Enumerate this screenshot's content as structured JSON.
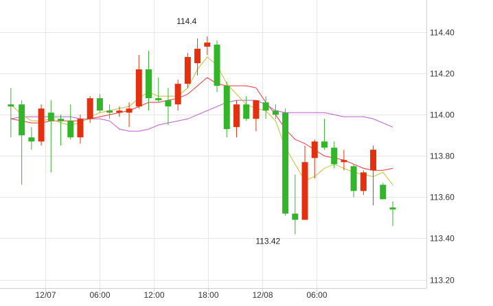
{
  "chart_data": {
    "type": "candlestick",
    "y_axis": {
      "range": [
        113.2,
        114.5
      ],
      "ticks": [
        114.4,
        114.2,
        114.0,
        113.8,
        113.6,
        113.4,
        113.2
      ],
      "tick_labels": [
        "114.40",
        "114.20",
        "114.00",
        "113.80",
        "113.60",
        "113.40",
        "113.20"
      ],
      "position": "right"
    },
    "x_axis": {
      "tick_labels": [
        "12/07",
        "06:00",
        "12:00",
        "18:00",
        "12/08",
        "06:00"
      ],
      "tick_slots": [
        3,
        8,
        13,
        18,
        23,
        28
      ]
    },
    "grid": true,
    "annotations": [
      {
        "text": "114.4",
        "slot": 16,
        "value": 114.42,
        "where": "above"
      },
      {
        "text": "113.42",
        "slot": 23.5,
        "value": 113.42,
        "where": "below"
      }
    ],
    "colors": {
      "up": "#e3300e",
      "down": "#33b52a",
      "ma_short": "#c8c447",
      "ma_mid": "#f04848",
      "ma_long": "#c26ad0",
      "grid": "#e6e6e6",
      "axis": "#cfcfcf"
    },
    "candles": [
      {
        "slot": -0.2,
        "o": 114.05,
        "h": 114.13,
        "l": 113.89,
        "c": 114.04
      },
      {
        "slot": 0.8,
        "o": 114.05,
        "h": 114.07,
        "l": 113.66,
        "c": 113.9
      },
      {
        "slot": 1.7,
        "o": 113.89,
        "h": 113.94,
        "l": 113.83,
        "c": 113.87
      },
      {
        "slot": 2.6,
        "o": 113.87,
        "h": 114.05,
        "l": 113.85,
        "c": 114.03
      },
      {
        "slot": 3.5,
        "o": 114.01,
        "h": 114.07,
        "l": 113.72,
        "c": 113.97
      },
      {
        "slot": 4.4,
        "o": 113.98,
        "h": 114.0,
        "l": 113.85,
        "c": 113.97
      },
      {
        "slot": 5.3,
        "o": 113.97,
        "h": 114.05,
        "l": 113.88,
        "c": 113.89
      },
      {
        "slot": 6.2,
        "o": 113.89,
        "h": 114.0,
        "l": 113.86,
        "c": 113.98
      },
      {
        "slot": 7.1,
        "o": 113.98,
        "h": 114.09,
        "l": 113.96,
        "c": 114.08
      },
      {
        "slot": 8.0,
        "o": 114.08,
        "h": 114.1,
        "l": 114.01,
        "c": 114.02
      },
      {
        "slot": 8.9,
        "o": 114.02,
        "h": 114.05,
        "l": 113.98,
        "c": 114.01
      },
      {
        "slot": 9.8,
        "o": 114.01,
        "h": 114.04,
        "l": 113.99,
        "c": 114.02
      },
      {
        "slot": 10.7,
        "o": 114.01,
        "h": 114.06,
        "l": 113.94,
        "c": 114.03
      },
      {
        "slot": 11.6,
        "o": 114.04,
        "h": 114.29,
        "l": 114.03,
        "c": 114.22
      },
      {
        "slot": 12.5,
        "o": 114.22,
        "h": 114.31,
        "l": 114.02,
        "c": 114.08
      },
      {
        "slot": 13.4,
        "o": 114.08,
        "h": 114.18,
        "l": 114.06,
        "c": 114.07
      },
      {
        "slot": 14.3,
        "o": 114.07,
        "h": 114.13,
        "l": 113.95,
        "c": 114.04
      },
      {
        "slot": 15.2,
        "o": 114.05,
        "h": 114.17,
        "l": 114.02,
        "c": 114.15
      },
      {
        "slot": 16.1,
        "o": 114.15,
        "h": 114.3,
        "l": 114.13,
        "c": 114.28
      },
      {
        "slot": 17.0,
        "o": 114.25,
        "h": 114.37,
        "l": 114.19,
        "c": 114.32
      },
      {
        "slot": 17.9,
        "o": 114.33,
        "h": 114.38,
        "l": 114.29,
        "c": 114.35
      },
      {
        "slot": 18.8,
        "o": 114.34,
        "h": 114.36,
        "l": 114.11,
        "c": 114.14
      },
      {
        "slot": 19.7,
        "o": 114.14,
        "h": 114.16,
        "l": 113.89,
        "c": 113.93
      },
      {
        "slot": 20.6,
        "o": 113.94,
        "h": 114.07,
        "l": 113.89,
        "c": 114.05
      },
      {
        "slot": 21.5,
        "o": 114.05,
        "h": 114.09,
        "l": 113.97,
        "c": 113.98
      },
      {
        "slot": 22.4,
        "o": 113.98,
        "h": 114.07,
        "l": 113.92,
        "c": 114.07
      },
      {
        "slot": 23.3,
        "o": 114.06,
        "h": 114.09,
        "l": 113.98,
        "c": 114.02
      },
      {
        "slot": 24.2,
        "o": 114.02,
        "h": 114.05,
        "l": 113.98,
        "c": 114.0
      },
      {
        "slot": 25.1,
        "o": 114.01,
        "h": 114.03,
        "l": 113.51,
        "c": 113.52
      },
      {
        "slot": 26.0,
        "o": 113.52,
        "h": 113.71,
        "l": 113.42,
        "c": 113.49
      },
      {
        "slot": 26.9,
        "o": 113.49,
        "h": 113.85,
        "l": 113.49,
        "c": 113.77
      },
      {
        "slot": 27.8,
        "o": 113.79,
        "h": 113.88,
        "l": 113.69,
        "c": 113.87
      },
      {
        "slot": 28.7,
        "o": 113.87,
        "h": 113.98,
        "l": 113.83,
        "c": 113.84
      },
      {
        "slot": 29.6,
        "o": 113.84,
        "h": 113.87,
        "l": 113.74,
        "c": 113.76
      },
      {
        "slot": 30.5,
        "o": 113.77,
        "h": 113.83,
        "l": 113.73,
        "c": 113.78
      },
      {
        "slot": 31.4,
        "o": 113.75,
        "h": 113.76,
        "l": 113.6,
        "c": 113.63
      },
      {
        "slot": 32.3,
        "o": 113.63,
        "h": 113.73,
        "l": 113.61,
        "c": 113.72
      },
      {
        "slot": 33.2,
        "o": 113.73,
        "h": 113.85,
        "l": 113.56,
        "c": 113.83
      },
      {
        "slot": 34.1,
        "o": 113.66,
        "h": 113.67,
        "l": 113.59,
        "c": 113.59
      },
      {
        "slot": 35.0,
        "o": 113.55,
        "h": 113.58,
        "l": 113.46,
        "c": 113.54
      }
    ],
    "ma_short": [
      114.05,
      114.0,
      113.97,
      113.97,
      113.98,
      113.96,
      113.95,
      113.96,
      113.99,
      114.01,
      114.02,
      114.03,
      114.04,
      114.08,
      114.11,
      114.09,
      114.09,
      114.09,
      114.13,
      114.22,
      114.28,
      114.24,
      114.15,
      114.1,
      114.05,
      114.03,
      114.02,
      113.97,
      113.84,
      113.76,
      113.68,
      113.7,
      113.74,
      113.76,
      113.74,
      113.72,
      113.71,
      113.7,
      113.72,
      113.66
    ],
    "ma_mid": [
      113.98,
      113.97,
      113.96,
      113.96,
      113.97,
      113.97,
      113.97,
      113.97,
      113.98,
      113.99,
      114.0,
      114.01,
      114.02,
      114.04,
      114.06,
      114.06,
      114.07,
      114.08,
      114.1,
      114.14,
      114.18,
      114.15,
      114.14,
      114.14,
      114.14,
      114.13,
      114.06,
      114.0,
      113.93,
      113.88,
      113.86,
      113.83,
      113.8,
      113.79,
      113.78,
      113.76,
      113.74,
      113.73,
      113.73,
      113.74
    ],
    "ma_long": [
      113.98,
      113.99,
      113.99,
      113.99,
      113.99,
      113.99,
      113.99,
      113.98,
      113.98,
      113.98,
      113.97,
      113.93,
      113.92,
      113.92,
      113.93,
      113.95,
      113.96,
      113.97,
      113.98,
      114.0,
      114.02,
      114.04,
      114.06,
      114.07,
      114.07,
      114.07,
      114.05,
      114.02,
      114.01,
      114.01,
      114.01,
      114.01,
      114.01,
      114.0,
      113.99,
      113.99,
      113.99,
      113.98,
      113.96,
      113.94
    ]
  }
}
